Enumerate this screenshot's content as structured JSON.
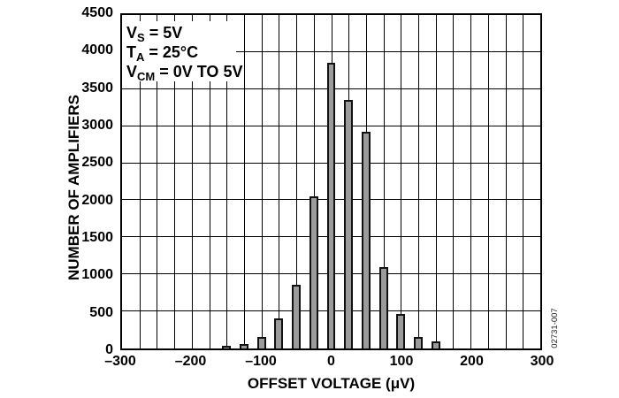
{
  "figure": {
    "watermark": "02731-007",
    "background": "#ffffff"
  },
  "annotation": {
    "lines": [
      {
        "base": "V",
        "sub": "S",
        "rest": " = 5V"
      },
      {
        "base": "T",
        "sub": "A",
        "rest": " = 25°C"
      },
      {
        "base": "V",
        "sub": "CM",
        "rest": " = 0V TO 5V"
      }
    ]
  },
  "chart_data": {
    "type": "bar",
    "title": "",
    "xlabel": "OFFSET VOLTAGE (μV)",
    "ylabel": "NUMBER OF AMPLIFIERS",
    "xlim": [
      -300,
      300
    ],
    "ylim": [
      0,
      4500
    ],
    "x_grid_interval": 25,
    "y_grid_interval": 500,
    "grid": true,
    "legend": "none",
    "bar_width_uv": 12.5,
    "x": [
      -150,
      -125,
      -100,
      -75,
      -50,
      -25,
      0,
      25,
      50,
      75,
      100,
      125,
      150
    ],
    "values": [
      40,
      55,
      155,
      410,
      860,
      2050,
      3850,
      3350,
      2920,
      1100,
      460,
      155,
      90
    ],
    "x_ticks": [
      {
        "value": -300,
        "label": "–300"
      },
      {
        "value": -200,
        "label": "–200"
      },
      {
        "value": -100,
        "label": "–100"
      },
      {
        "value": 0,
        "label": "0"
      },
      {
        "value": 100,
        "label": "100"
      },
      {
        "value": 200,
        "label": "200"
      },
      {
        "value": 300,
        "label": "300"
      }
    ],
    "y_ticks": [
      {
        "value": 0,
        "label": "0"
      },
      {
        "value": 500,
        "label": "500"
      },
      {
        "value": 1000,
        "label": "1000"
      },
      {
        "value": 1500,
        "label": "1500"
      },
      {
        "value": 2000,
        "label": "2000"
      },
      {
        "value": 2500,
        "label": "2500"
      },
      {
        "value": 3000,
        "label": "3000"
      },
      {
        "value": 3500,
        "label": "3500"
      },
      {
        "value": 4000,
        "label": "4000"
      },
      {
        "value": 4500,
        "label": "4500"
      }
    ],
    "colors": {
      "bar_fill": "#9b9b9b",
      "bar_border": "#111111",
      "grid": "#000000",
      "frame": "#000000",
      "text": "#000000"
    }
  }
}
